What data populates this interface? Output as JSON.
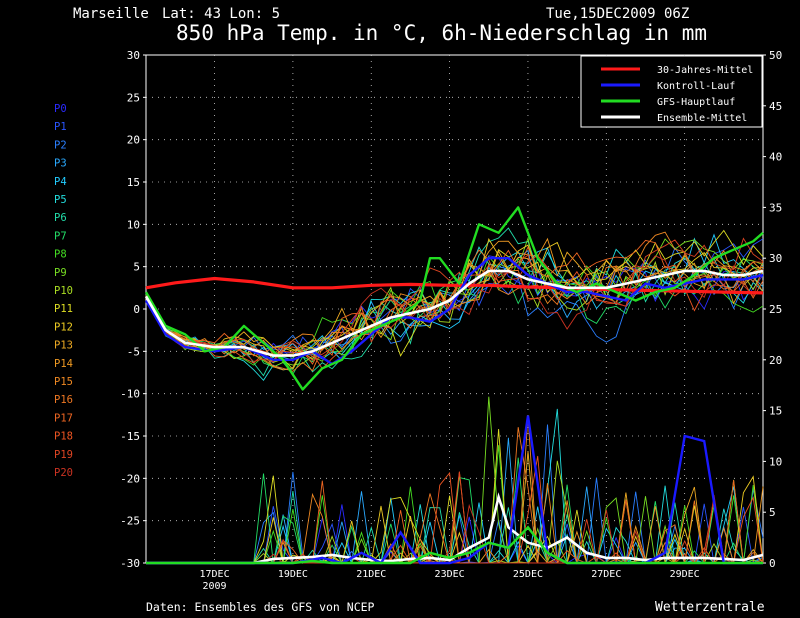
{
  "header": {
    "location": "Marseille",
    "coords": "Lat: 43 Lon: 5",
    "run": "Tue,15DEC2009 06Z",
    "title": "850 hPa Temp. in °C, 6h-Niederschlag in mm"
  },
  "footer": {
    "source": "Daten: Ensembles des GFS von NCEP",
    "brand": "Wetterzentrale"
  },
  "colors": {
    "background": "#000000",
    "climate": "#ff1a1a",
    "control": "#1a1aff",
    "main": "#22dd22",
    "mean": "#ffffff",
    "grid": "#cccccc"
  },
  "members": [
    {
      "name": "P0",
      "color": "#2a2aff"
    },
    {
      "name": "P1",
      "color": "#2a55ff"
    },
    {
      "name": "P2",
      "color": "#2a7fff"
    },
    {
      "name": "P3",
      "color": "#2aaaff"
    },
    {
      "name": "P4",
      "color": "#22ccff"
    },
    {
      "name": "P5",
      "color": "#22dddd"
    },
    {
      "name": "P6",
      "color": "#22ddaa"
    },
    {
      "name": "P7",
      "color": "#22dd66"
    },
    {
      "name": "P8",
      "color": "#44dd22"
    },
    {
      "name": "P9",
      "color": "#77dd22"
    },
    {
      "name": "P10",
      "color": "#aadd22"
    },
    {
      "name": "P11",
      "color": "#dddd22"
    },
    {
      "name": "P12",
      "color": "#eecc22"
    },
    {
      "name": "P13",
      "color": "#eeaa22"
    },
    {
      "name": "P14",
      "color": "#ee9922"
    },
    {
      "name": "P15",
      "color": "#ee8822"
    },
    {
      "name": "P16",
      "color": "#ee7722"
    },
    {
      "name": "P17",
      "color": "#ee6622"
    },
    {
      "name": "P18",
      "color": "#ee5522"
    },
    {
      "name": "P19",
      "color": "#dd4422"
    },
    {
      "name": "P20",
      "color": "#cc3322"
    }
  ],
  "chart_data": {
    "type": "line",
    "x_unit": "day of December 2009 (15.25 = 15DEC 06Z)",
    "x_range": [
      15.25,
      31.0
    ],
    "x_ticks": [
      {
        "x": 17,
        "label": "17DEC",
        "sub": "2009"
      },
      {
        "x": 19,
        "label": "19DEC",
        "sub": ""
      },
      {
        "x": 21,
        "label": "21DEC",
        "sub": ""
      },
      {
        "x": 23,
        "label": "23DEC",
        "sub": ""
      },
      {
        "x": 25,
        "label": "25DEC",
        "sub": ""
      },
      {
        "x": 27,
        "label": "27DEC",
        "sub": ""
      },
      {
        "x": 29,
        "label": "29DEC",
        "sub": ""
      }
    ],
    "y_left": {
      "min": -30,
      "max": 30,
      "step": 5
    },
    "y_right": {
      "min": 0,
      "max": 50,
      "step": 5
    },
    "legend": {
      "placement": "top-right",
      "entries": [
        {
          "label": "30-Jahres-Mittel",
          "key": "climate"
        },
        {
          "label": "Kontroll-Lauf",
          "key": "control"
        },
        {
          "label": "GFS-Hauptlauf",
          "key": "main"
        },
        {
          "label": "Ensemble-Mittel",
          "key": "mean"
        }
      ]
    },
    "series": [
      {
        "name": "30-Jahres-Mittel",
        "axis": "left",
        "points": [
          [
            15.25,
            2.5
          ],
          [
            16,
            3.1
          ],
          [
            17,
            3.6
          ],
          [
            18,
            3.2
          ],
          [
            19,
            2.5
          ],
          [
            20,
            2.5
          ],
          [
            21,
            2.8
          ],
          [
            22,
            2.9
          ],
          [
            23,
            2.8
          ],
          [
            24,
            2.8
          ],
          [
            25,
            2.6
          ],
          [
            26,
            2.5
          ],
          [
            27,
            2.3
          ],
          [
            28,
            2.2
          ],
          [
            29,
            2.1
          ],
          [
            30,
            2.0
          ],
          [
            31,
            1.9
          ]
        ]
      },
      {
        "name": "Ensemble-Mittel",
        "axis": "left",
        "points": [
          [
            15.25,
            1.5
          ],
          [
            15.75,
            -2.5
          ],
          [
            16.25,
            -4
          ],
          [
            17,
            -4.5
          ],
          [
            17.75,
            -4.5
          ],
          [
            18.5,
            -5.5
          ],
          [
            19,
            -5.5
          ],
          [
            19.5,
            -5
          ],
          [
            20,
            -4
          ],
          [
            20.5,
            -3
          ],
          [
            21,
            -2
          ],
          [
            21.5,
            -1
          ],
          [
            22,
            -0.5
          ],
          [
            22.5,
            0
          ],
          [
            23,
            1
          ],
          [
            23.5,
            3
          ],
          [
            24,
            4.5
          ],
          [
            24.5,
            4.5
          ],
          [
            25,
            3.5
          ],
          [
            25.5,
            3
          ],
          [
            26,
            2.5
          ],
          [
            26.5,
            2.5
          ],
          [
            27,
            2.5
          ],
          [
            27.5,
            3
          ],
          [
            28,
            3.5
          ],
          [
            28.5,
            4
          ],
          [
            29,
            4.5
          ],
          [
            29.5,
            4.5
          ],
          [
            30,
            4
          ],
          [
            30.5,
            4
          ],
          [
            31,
            4.5
          ]
        ]
      },
      {
        "name": "Kontroll-Lauf",
        "axis": "left",
        "points": [
          [
            15.25,
            1
          ],
          [
            15.75,
            -3
          ],
          [
            16.25,
            -4.5
          ],
          [
            17,
            -5
          ],
          [
            17.75,
            -4.5
          ],
          [
            18.5,
            -6
          ],
          [
            19,
            -6
          ],
          [
            19.5,
            -5
          ],
          [
            20,
            -6.5
          ],
          [
            20.5,
            -5
          ],
          [
            21,
            -3
          ],
          [
            21.5,
            -1
          ],
          [
            22,
            -1
          ],
          [
            22.5,
            -1.5
          ],
          [
            23,
            0
          ],
          [
            23.5,
            4
          ],
          [
            24,
            6
          ],
          [
            24.5,
            6
          ],
          [
            25,
            4
          ],
          [
            25.5,
            3
          ],
          [
            26,
            2
          ],
          [
            26.5,
            2
          ],
          [
            27,
            1.5
          ],
          [
            27.5,
            1
          ],
          [
            28,
            3
          ],
          [
            28.5,
            2.5
          ],
          [
            29,
            3
          ],
          [
            29.5,
            3.5
          ],
          [
            30,
            3.5
          ],
          [
            30.5,
            3.5
          ],
          [
            31,
            4
          ]
        ]
      },
      {
        "name": "GFS-Hauptlauf",
        "axis": "left",
        "points": [
          [
            15.25,
            2
          ],
          [
            15.75,
            -2
          ],
          [
            16.25,
            -3
          ],
          [
            16.75,
            -5
          ],
          [
            17.25,
            -4.5
          ],
          [
            17.75,
            -2
          ],
          [
            18.25,
            -4
          ],
          [
            18.75,
            -6
          ],
          [
            19.25,
            -9.5
          ],
          [
            19.75,
            -7
          ],
          [
            20.25,
            -6
          ],
          [
            20.75,
            -3
          ],
          [
            21.25,
            -2
          ],
          [
            21.75,
            -1
          ],
          [
            22.25,
            1
          ],
          [
            22.5,
            6
          ],
          [
            22.75,
            6
          ],
          [
            23.25,
            3
          ],
          [
            23.75,
            10
          ],
          [
            24.25,
            9
          ],
          [
            24.75,
            12
          ],
          [
            25.25,
            6
          ],
          [
            25.75,
            3
          ],
          [
            26.25,
            2
          ],
          [
            26.75,
            3
          ],
          [
            27.25,
            2
          ],
          [
            27.75,
            1
          ],
          [
            28.25,
            2
          ],
          [
            28.75,
            2.5
          ],
          [
            29.25,
            4
          ],
          [
            29.75,
            6
          ],
          [
            30.25,
            7
          ],
          [
            30.75,
            8
          ],
          [
            31,
            9
          ]
        ]
      }
    ],
    "precipitation": [
      {
        "name": "Ensemble-Mittel",
        "axis": "right",
        "points": [
          [
            15.25,
            0
          ],
          [
            17,
            0
          ],
          [
            18,
            0
          ],
          [
            18.5,
            0.4
          ],
          [
            19,
            0.5
          ],
          [
            19.5,
            0.6
          ],
          [
            20,
            0.8
          ],
          [
            20.5,
            0.5
          ],
          [
            21,
            0.3
          ],
          [
            21.5,
            0.2
          ],
          [
            22,
            0.4
          ],
          [
            22.5,
            0.5
          ],
          [
            23,
            0.3
          ],
          [
            23.5,
            1.5
          ],
          [
            24,
            2.5
          ],
          [
            24.25,
            6.5
          ],
          [
            24.5,
            3.5
          ],
          [
            25,
            2
          ],
          [
            25.5,
            1.5
          ],
          [
            26,
            2.5
          ],
          [
            26.5,
            1
          ],
          [
            27,
            0.5
          ],
          [
            27.5,
            0.5
          ],
          [
            28,
            0.3
          ],
          [
            28.5,
            0.5
          ],
          [
            29,
            0.5
          ],
          [
            29.5,
            0.5
          ],
          [
            30,
            0.4
          ],
          [
            30.5,
            0.3
          ],
          [
            31,
            0.8
          ]
        ]
      },
      {
        "name": "Kontroll-Lauf",
        "axis": "right",
        "points": [
          [
            15.25,
            0
          ],
          [
            19,
            0
          ],
          [
            19.75,
            0.5
          ],
          [
            20.25,
            0
          ],
          [
            20.75,
            1
          ],
          [
            21.25,
            0
          ],
          [
            21.75,
            3
          ],
          [
            22.25,
            0
          ],
          [
            23,
            0
          ],
          [
            23.5,
            0.5
          ],
          [
            24,
            2
          ],
          [
            24.5,
            1.5
          ],
          [
            25,
            14.5
          ],
          [
            25.5,
            1
          ],
          [
            26,
            0
          ],
          [
            27,
            0
          ],
          [
            28,
            0
          ],
          [
            28.5,
            1
          ],
          [
            29,
            12.5
          ],
          [
            29.5,
            12
          ],
          [
            30,
            0
          ],
          [
            31,
            0
          ]
        ]
      },
      {
        "name": "GFS-Hauptlauf",
        "axis": "right",
        "points": [
          [
            15.25,
            0
          ],
          [
            18.5,
            0
          ],
          [
            19,
            0
          ],
          [
            19.5,
            0.2
          ],
          [
            20,
            0
          ],
          [
            22,
            0
          ],
          [
            22.5,
            1
          ],
          [
            23,
            0.5
          ],
          [
            23.5,
            1
          ],
          [
            24,
            2
          ],
          [
            24.5,
            1.5
          ],
          [
            25,
            3.5
          ],
          [
            25.5,
            1
          ],
          [
            26,
            0
          ],
          [
            31,
            0
          ]
        ]
      }
    ],
    "ensemble_note": "Thin coloured lines are the 21 perturbed members P0–P20 for 850 hPa temperature (left axis) and 6h precipitation (right axis); individual member values are too dense to read off."
  }
}
